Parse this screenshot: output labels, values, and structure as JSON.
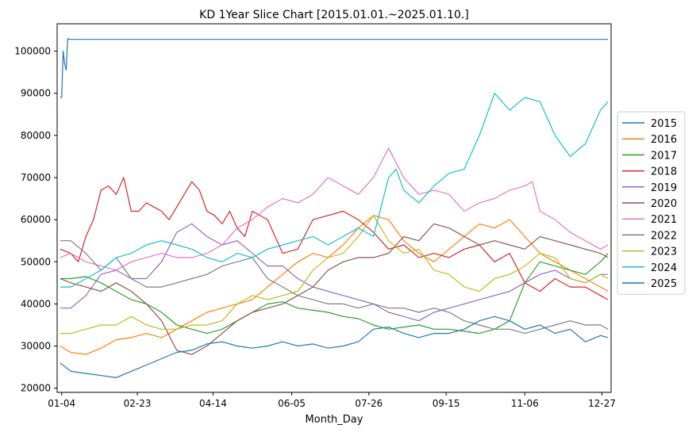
{
  "chart_data": {
    "type": "line",
    "title": "KD 1Year Slice Chart [2015.01.01.~2025.01.10.]",
    "xlabel": "Month_Day",
    "ylabel": "",
    "x_tick_labels": [
      "01-04",
      "02-23",
      "04-14",
      "06-05",
      "07-26",
      "09-15",
      "11-06",
      "12-27"
    ],
    "x_tick_days": [
      4,
      54,
      104,
      156,
      207,
      258,
      310,
      361
    ],
    "y_ticks": [
      20000,
      30000,
      40000,
      50000,
      60000,
      70000,
      80000,
      90000,
      100000
    ],
    "y_tick_labels": [
      "20000",
      "30000",
      "40000",
      "50000",
      "60000",
      "70000",
      "80000",
      "90000",
      "100000"
    ],
    "xlim": [
      1,
      367
    ],
    "ylim": [
      19000,
      106500
    ],
    "grid": false,
    "legend_position": "right",
    "x_units": "day of year",
    "series": [
      {
        "name": "2015",
        "color": "#1f77b4",
        "x": [
          3,
          4,
          5,
          6,
          7,
          8,
          9,
          10,
          15,
          60,
          120,
          180,
          240,
          300,
          365
        ],
        "values": [
          89000,
          89000,
          100000,
          97000,
          95500,
          103000,
          102800,
          102800,
          102800,
          102800,
          102800,
          102800,
          102800,
          102800,
          102800
        ]
      },
      {
        "name": "2016",
        "color": "#ff7f0e",
        "x": [
          3,
          10,
          20,
          30,
          40,
          50,
          60,
          70,
          80,
          90,
          100,
          110,
          120,
          130,
          140,
          150,
          160,
          170,
          180,
          190,
          200,
          210,
          220,
          230,
          240,
          250,
          260,
          270,
          280,
          290,
          300,
          310,
          320,
          330,
          340,
          350,
          360,
          365
        ],
        "values": [
          30000,
          28500,
          28000,
          29500,
          31500,
          32000,
          33000,
          32000,
          34000,
          36000,
          38000,
          39000,
          40000,
          41000,
          44000,
          47000,
          50000,
          52000,
          51000,
          54000,
          58000,
          61000,
          60000,
          55000,
          52000,
          50000,
          53000,
          56000,
          59000,
          58000,
          60000,
          56000,
          52000,
          50000,
          48000,
          46000,
          44000,
          43000
        ]
      },
      {
        "name": "2017",
        "color": "#2ca02c",
        "x": [
          3,
          10,
          20,
          30,
          40,
          50,
          60,
          70,
          80,
          90,
          100,
          110,
          120,
          130,
          140,
          150,
          160,
          170,
          180,
          190,
          200,
          210,
          220,
          230,
          240,
          250,
          260,
          270,
          280,
          290,
          300,
          310,
          320,
          330,
          340,
          350,
          360,
          365
        ],
        "values": [
          46000,
          46000,
          46500,
          45000,
          43000,
          41000,
          40000,
          38000,
          35000,
          34000,
          33000,
          34000,
          36000,
          38000,
          40000,
          40500,
          39000,
          38500,
          38000,
          37000,
          36500,
          35000,
          34000,
          34500,
          35000,
          34000,
          34000,
          33500,
          33000,
          34000,
          36000,
          45000,
          50000,
          49000,
          48000,
          47000,
          50000,
          52000
        ]
      },
      {
        "name": "2018",
        "color": "#d62728",
        "x": [
          3,
          10,
          15,
          20,
          25,
          30,
          35,
          40,
          45,
          50,
          55,
          60,
          65,
          70,
          75,
          80,
          85,
          90,
          95,
          100,
          105,
          110,
          115,
          120,
          125,
          130,
          140,
          150,
          160,
          170,
          180,
          190,
          200,
          210,
          220,
          230,
          240,
          250,
          260,
          270,
          280,
          290,
          300,
          310,
          320,
          330,
          340,
          350,
          360,
          365
        ],
        "values": [
          53000,
          52000,
          50000,
          56000,
          60000,
          67000,
          68000,
          66000,
          70000,
          62000,
          62000,
          64000,
          63000,
          62000,
          60000,
          63000,
          66000,
          69000,
          67000,
          62000,
          61000,
          59000,
          62000,
          58000,
          56000,
          62000,
          60000,
          52000,
          53000,
          60000,
          61000,
          62000,
          60000,
          57000,
          53000,
          54000,
          51000,
          52000,
          51000,
          53000,
          54000,
          50000,
          52000,
          45000,
          43000,
          46000,
          44000,
          44000,
          42000,
          41000
        ]
      },
      {
        "name": "2019",
        "color": "#9467bd",
        "x": [
          3,
          10,
          20,
          30,
          40,
          50,
          60,
          70,
          80,
          90,
          100,
          110,
          120,
          130,
          140,
          150,
          160,
          170,
          180,
          190,
          200,
          210,
          220,
          230,
          240,
          250,
          260,
          270,
          280,
          290,
          300,
          310,
          320,
          330,
          340,
          350,
          360,
          365
        ],
        "values": [
          39000,
          39000,
          42000,
          47000,
          48000,
          46000,
          46000,
          50000,
          57000,
          59000,
          56000,
          54000,
          55000,
          52000,
          49000,
          49000,
          46000,
          44000,
          43000,
          42000,
          41000,
          40000,
          38000,
          37000,
          36000,
          38000,
          39000,
          40000,
          41000,
          42000,
          43000,
          45000,
          47000,
          48000,
          46000,
          45000,
          47000,
          47000
        ]
      },
      {
        "name": "2020",
        "color": "#8c564b",
        "x": [
          3,
          10,
          20,
          30,
          40,
          50,
          60,
          70,
          80,
          90,
          100,
          110,
          120,
          130,
          140,
          150,
          160,
          170,
          180,
          190,
          200,
          210,
          220,
          230,
          240,
          250,
          260,
          270,
          280,
          290,
          300,
          310,
          320,
          330,
          340,
          350,
          360,
          365
        ],
        "values": [
          46000,
          45000,
          44000,
          43000,
          45000,
          43000,
          40000,
          36000,
          29000,
          28000,
          30000,
          33000,
          36000,
          38000,
          39000,
          40000,
          42000,
          44000,
          48000,
          50000,
          51000,
          51000,
          52000,
          56000,
          55000,
          59000,
          58000,
          56000,
          54000,
          55000,
          54000,
          53000,
          56000,
          55000,
          54000,
          53000,
          52000,
          51000
        ]
      },
      {
        "name": "2021",
        "color": "#e377c2",
        "x": [
          3,
          10,
          20,
          30,
          40,
          50,
          60,
          70,
          80,
          90,
          100,
          110,
          120,
          130,
          140,
          150,
          160,
          170,
          180,
          190,
          200,
          210,
          220,
          230,
          240,
          250,
          260,
          270,
          280,
          290,
          300,
          310,
          315,
          320,
          330,
          340,
          350,
          360,
          365
        ],
        "values": [
          51000,
          52000,
          50000,
          49000,
          48000,
          50000,
          51000,
          52000,
          51000,
          51000,
          52000,
          54000,
          58000,
          60000,
          63000,
          65000,
          64000,
          66000,
          70000,
          68000,
          66000,
          70000,
          77000,
          70000,
          66000,
          67000,
          66000,
          62000,
          64000,
          65000,
          67000,
          68000,
          69000,
          62000,
          60000,
          57000,
          55000,
          53000,
          54000
        ]
      },
      {
        "name": "2022",
        "color": "#7f7f7f",
        "x": [
          3,
          10,
          20,
          30,
          40,
          50,
          60,
          70,
          80,
          90,
          100,
          110,
          120,
          130,
          140,
          150,
          160,
          170,
          180,
          190,
          200,
          210,
          220,
          230,
          240,
          250,
          260,
          270,
          280,
          290,
          300,
          310,
          320,
          330,
          340,
          350,
          360,
          365
        ],
        "values": [
          55000,
          55000,
          52000,
          48000,
          51000,
          46000,
          44000,
          44000,
          45000,
          46000,
          47000,
          49000,
          50000,
          51000,
          46000,
          44000,
          42000,
          41000,
          40000,
          40000,
          39000,
          40000,
          39000,
          39000,
          38000,
          39000,
          38000,
          36000,
          35000,
          34000,
          34000,
          33000,
          34000,
          35000,
          36000,
          35000,
          35000,
          34000
        ]
      },
      {
        "name": "2023",
        "color": "#bcbd22",
        "x": [
          3,
          10,
          20,
          30,
          40,
          50,
          60,
          70,
          80,
          90,
          100,
          110,
          120,
          130,
          140,
          150,
          160,
          170,
          180,
          190,
          200,
          210,
          220,
          230,
          240,
          250,
          260,
          270,
          280,
          290,
          300,
          310,
          320,
          330,
          340,
          350,
          360,
          365
        ],
        "values": [
          33000,
          33000,
          34000,
          35000,
          35000,
          37000,
          35000,
          34000,
          34000,
          35000,
          35000,
          36000,
          40000,
          42000,
          41000,
          42000,
          43000,
          48000,
          51000,
          52000,
          56000,
          61000,
          55000,
          52000,
          53000,
          48000,
          47000,
          44000,
          43000,
          46000,
          47000,
          49000,
          52000,
          51000,
          46000,
          45000,
          47000,
          46000
        ]
      },
      {
        "name": "2024",
        "color": "#17becf",
        "x": [
          3,
          10,
          20,
          30,
          40,
          50,
          60,
          70,
          80,
          90,
          100,
          110,
          120,
          130,
          140,
          150,
          160,
          170,
          180,
          190,
          200,
          210,
          220,
          225,
          230,
          240,
          250,
          260,
          270,
          280,
          290,
          300,
          310,
          320,
          330,
          340,
          350,
          360,
          365
        ],
        "values": [
          44000,
          44000,
          46000,
          48000,
          51000,
          52000,
          54000,
          55000,
          54000,
          53000,
          51000,
          50000,
          52000,
          51000,
          53000,
          54000,
          55000,
          56000,
          54000,
          56000,
          58000,
          56000,
          70000,
          72000,
          67000,
          64000,
          68000,
          71000,
          72000,
          80000,
          90000,
          86000,
          89000,
          88000,
          80000,
          75000,
          78000,
          86000,
          88000
        ]
      },
      {
        "name": "2025",
        "color": "#1f77b4",
        "x": [
          3,
          10,
          20,
          30,
          40,
          50,
          60,
          70,
          80,
          90,
          100,
          110,
          120,
          130,
          140,
          150,
          160,
          170,
          180,
          190,
          200,
          210,
          220,
          230,
          240,
          250,
          260,
          270,
          280,
          290,
          300,
          310,
          320,
          330,
          340,
          350,
          360,
          365
        ],
        "values": [
          26000,
          24000,
          23500,
          23000,
          22500,
          24000,
          25500,
          27000,
          28500,
          29000,
          30500,
          31000,
          30000,
          29500,
          30000,
          31000,
          30000,
          30500,
          29500,
          30000,
          31000,
          34000,
          34500,
          33000,
          32000,
          33000,
          33000,
          34000,
          36000,
          37000,
          36000,
          34000,
          35000,
          33000,
          34000,
          31000,
          32500,
          32000
        ]
      }
    ]
  }
}
